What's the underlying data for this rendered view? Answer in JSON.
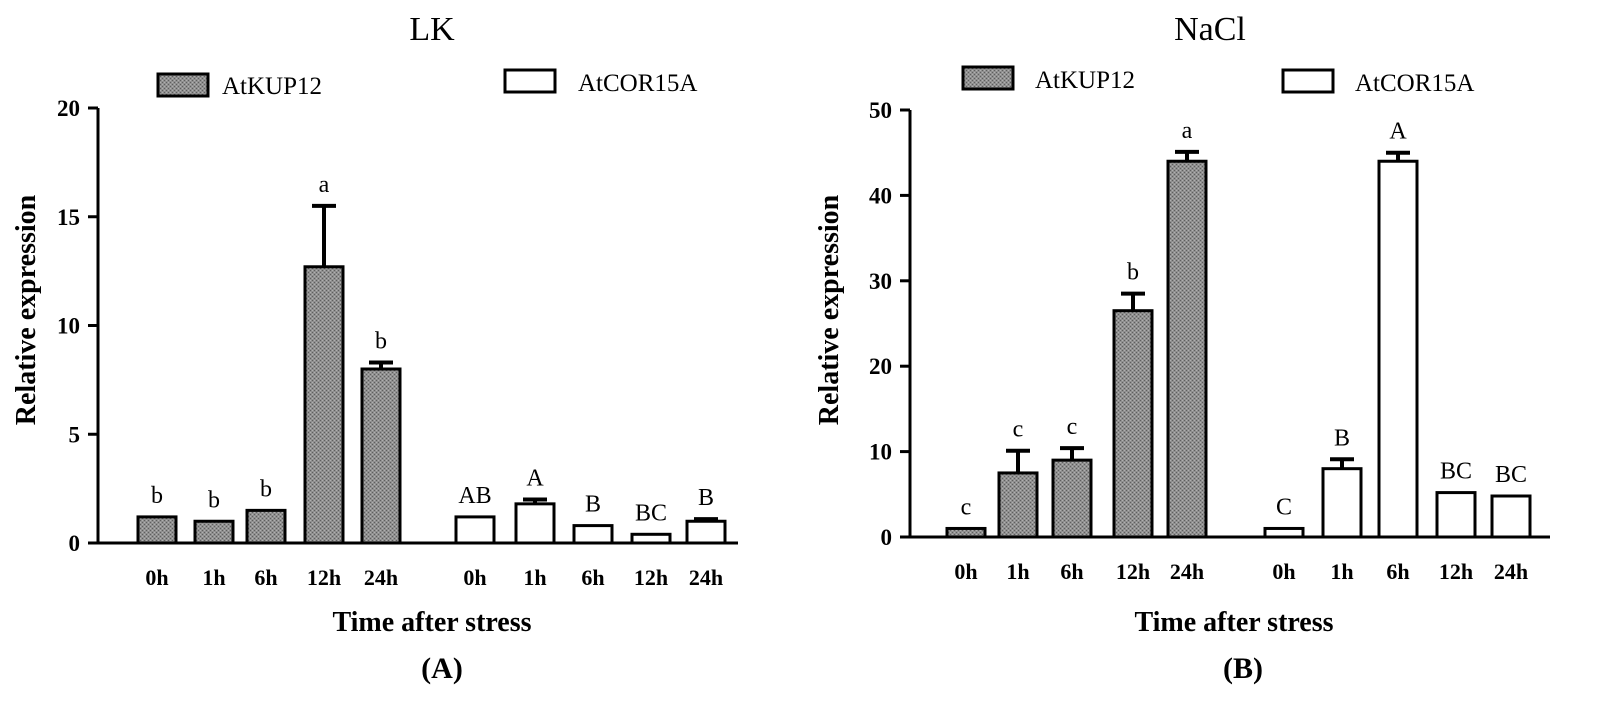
{
  "chart_data": [
    {
      "type": "bar",
      "panel_label": "(A)",
      "title": "LK",
      "xlabel": "Time after stress",
      "ylabel": "Relative expression",
      "ylim": [
        0,
        20
      ],
      "yticks": [
        "0",
        "5",
        "10",
        "15",
        "20"
      ],
      "categories": [
        "0h",
        "1h",
        "6h",
        "12h",
        "24h"
      ],
      "series": [
        {
          "name": "AtKUP12",
          "fill": "#8c8c8c",
          "values": [
            1.2,
            1.0,
            1.5,
            12.7,
            8.0
          ],
          "errors": [
            0.0,
            0.0,
            0.0,
            2.8,
            0.3
          ],
          "letters": [
            "b",
            "b",
            "b",
            "a",
            "b"
          ]
        },
        {
          "name": "AtCOR15A",
          "fill": "#ffffff",
          "values": [
            1.2,
            1.8,
            0.8,
            0.4,
            1.0
          ],
          "errors": [
            0.0,
            0.2,
            0.0,
            0.0,
            0.1
          ],
          "letters": [
            "AB",
            "A",
            "B",
            "BC",
            "B"
          ]
        }
      ]
    },
    {
      "type": "bar",
      "panel_label": "(B)",
      "title": "NaCl",
      "xlabel": "Time after stress",
      "ylabel": "Relative expression",
      "ylim": [
        0,
        50
      ],
      "yticks": [
        "0",
        "10",
        "20",
        "30",
        "40",
        "50"
      ],
      "categories": [
        "0h",
        "1h",
        "6h",
        "12h",
        "24h"
      ],
      "series": [
        {
          "name": "AtKUP12",
          "fill": "#8c8c8c",
          "values": [
            1.0,
            7.5,
            9.0,
            26.5,
            44.0
          ],
          "errors": [
            0.0,
            2.6,
            1.4,
            2.0,
            1.1
          ],
          "letters": [
            "c",
            "c",
            "c",
            "b",
            "a"
          ]
        },
        {
          "name": "AtCOR15A",
          "fill": "#ffffff",
          "values": [
            1.0,
            8.0,
            44.0,
            5.2,
            4.8
          ],
          "errors": [
            0.0,
            1.1,
            1.0,
            0.0,
            0.0
          ],
          "letters": [
            "C",
            "B",
            "A",
            "BC",
            "BC"
          ]
        }
      ]
    }
  ]
}
